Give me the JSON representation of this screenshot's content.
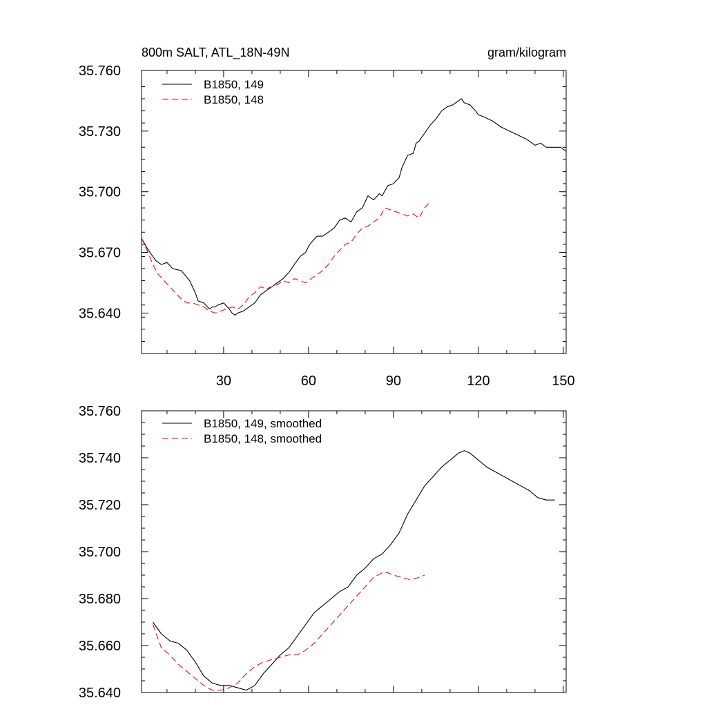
{
  "chart_data": [
    {
      "type": "line",
      "title": "800m SALT, ATL_18N-49N",
      "units": "gram/kilogram",
      "xlabel": "",
      "ylabel": "",
      "xlim": [
        1,
        151
      ],
      "ylim": [
        35.62,
        35.76
      ],
      "xticks": [
        30,
        60,
        90,
        120,
        150
      ],
      "xtick_labels": [
        "30",
        "60",
        "90",
        "120",
        "150"
      ],
      "yticks": [
        35.64,
        35.67,
        35.7,
        35.73,
        35.76
      ],
      "ytick_labels": [
        "35.640",
        "35.670",
        "35.700",
        "35.730",
        "35.760"
      ],
      "legend_position": "top-left",
      "series": [
        {
          "name": "B1850, 149",
          "color": "#000000",
          "style": "solid",
          "x": [
            1,
            3,
            6,
            8,
            10,
            12,
            15,
            18,
            20,
            21,
            23,
            25,
            26,
            27,
            28,
            30,
            32,
            33,
            34,
            35,
            37,
            39,
            41,
            43,
            45,
            47,
            49,
            51,
            53,
            55,
            57,
            59,
            60,
            61,
            63,
            65,
            67,
            69,
            71,
            73,
            75,
            77,
            79,
            81,
            83,
            85,
            86,
            88,
            90,
            92,
            93,
            95,
            97,
            98,
            99,
            101,
            103,
            105,
            107,
            109,
            111,
            113,
            114,
            115,
            117,
            119,
            120,
            122,
            125,
            128,
            131,
            134,
            137,
            140,
            142,
            144,
            145,
            147,
            149,
            151
          ],
          "values": [
            35.677,
            35.672,
            35.666,
            35.664,
            35.665,
            35.662,
            35.661,
            35.656,
            35.65,
            35.646,
            35.645,
            35.642,
            35.643,
            35.643,
            35.644,
            35.645,
            35.642,
            35.64,
            35.639,
            35.64,
            35.641,
            35.643,
            35.645,
            35.649,
            35.651,
            35.653,
            35.655,
            35.657,
            35.66,
            35.664,
            35.668,
            35.67,
            35.673,
            35.675,
            35.678,
            35.678,
            35.68,
            35.682,
            35.686,
            35.687,
            35.685,
            35.69,
            35.692,
            35.698,
            35.696,
            35.699,
            35.698,
            35.703,
            35.704,
            35.707,
            35.712,
            35.718,
            35.719,
            35.724,
            35.725,
            35.729,
            35.733,
            35.736,
            35.74,
            35.742,
            35.743,
            35.745,
            35.746,
            35.744,
            35.743,
            35.74,
            35.738,
            35.737,
            35.735,
            35.732,
            35.73,
            35.728,
            35.726,
            35.723,
            35.724,
            35.722,
            35.722,
            35.722,
            35.722,
            35.72
          ]
        },
        {
          "name": "B1850, 148",
          "color": "#ff0000",
          "style": "dashed",
          "x": [
            1,
            3,
            5,
            7,
            9,
            11,
            13,
            15,
            17,
            19,
            21,
            23,
            25,
            27,
            29,
            31,
            33,
            35,
            37,
            39,
            41,
            43,
            45,
            47,
            49,
            51,
            53,
            55,
            57,
            59,
            61,
            63,
            65,
            67,
            69,
            71,
            73,
            75,
            77,
            79,
            81,
            83,
            85,
            87,
            89,
            91,
            93,
            95,
            97,
            99,
            101,
            103
          ],
          "values": [
            35.677,
            35.671,
            35.664,
            35.659,
            35.656,
            35.653,
            35.65,
            35.647,
            35.645,
            35.645,
            35.644,
            35.643,
            35.641,
            35.64,
            35.641,
            35.642,
            35.643,
            35.642,
            35.644,
            35.648,
            35.65,
            35.653,
            35.652,
            35.653,
            35.654,
            35.656,
            35.655,
            35.657,
            35.656,
            35.655,
            35.657,
            35.659,
            35.661,
            35.664,
            35.668,
            35.671,
            35.674,
            35.675,
            35.679,
            35.682,
            35.683,
            35.685,
            35.687,
            35.692,
            35.691,
            35.69,
            35.689,
            35.688,
            35.689,
            35.687,
            35.692,
            35.695
          ]
        }
      ]
    },
    {
      "type": "line",
      "title": "",
      "xlabel": "",
      "ylabel": "",
      "xlim": [
        1,
        151
      ],
      "ylim": [
        35.64,
        35.76
      ],
      "xticks": [
        30,
        60,
        90,
        120,
        150
      ],
      "yticks": [
        35.64,
        35.66,
        35.68,
        35.7,
        35.72,
        35.74,
        35.76
      ],
      "ytick_labels": [
        "35.640",
        "35.660",
        "35.680",
        "35.700",
        "35.720",
        "35.740",
        "35.760"
      ],
      "legend_position": "top-left",
      "series": [
        {
          "name": "B1850, 149, smoothed",
          "color": "#000000",
          "style": "solid",
          "x": [
            5,
            8,
            11,
            14,
            17,
            20,
            23,
            26,
            29,
            32,
            35,
            38,
            41,
            44,
            47,
            50,
            53,
            56,
            59,
            62,
            65,
            68,
            71,
            74,
            77,
            80,
            83,
            86,
            89,
            92,
            95,
            98,
            101,
            104,
            107,
            110,
            113,
            115,
            117,
            120,
            123,
            126,
            129,
            132,
            135,
            138,
            141,
            144,
            147
          ],
          "values": [
            35.67,
            35.665,
            35.662,
            35.661,
            35.658,
            35.653,
            35.647,
            35.644,
            35.643,
            35.643,
            35.642,
            35.641,
            35.643,
            35.648,
            35.652,
            35.656,
            35.659,
            35.664,
            35.669,
            35.674,
            35.677,
            35.68,
            35.683,
            35.685,
            35.69,
            35.693,
            35.697,
            35.699,
            35.703,
            35.708,
            35.716,
            35.722,
            35.728,
            35.732,
            35.736,
            35.739,
            35.742,
            35.743,
            35.742,
            35.739,
            35.736,
            35.734,
            35.732,
            35.73,
            35.728,
            35.726,
            35.723,
            35.722,
            35.722
          ]
        },
        {
          "name": "B1850, 148, smoothed",
          "color": "#ff0000",
          "style": "dashed",
          "x": [
            5,
            8,
            11,
            14,
            17,
            20,
            23,
            26,
            29,
            32,
            35,
            38,
            41,
            44,
            47,
            50,
            53,
            56,
            59,
            62,
            65,
            68,
            71,
            74,
            77,
            80,
            83,
            86,
            88,
            90,
            93,
            96,
            99,
            101
          ],
          "values": [
            35.669,
            35.659,
            35.656,
            35.652,
            35.649,
            35.646,
            35.643,
            35.641,
            35.641,
            35.642,
            35.644,
            35.648,
            35.651,
            35.653,
            35.654,
            35.655,
            35.656,
            35.656,
            35.658,
            35.661,
            35.665,
            35.669,
            35.673,
            35.677,
            35.681,
            35.685,
            35.689,
            35.691,
            35.691,
            35.69,
            35.689,
            35.688,
            35.689,
            35.69
          ]
        }
      ]
    }
  ]
}
